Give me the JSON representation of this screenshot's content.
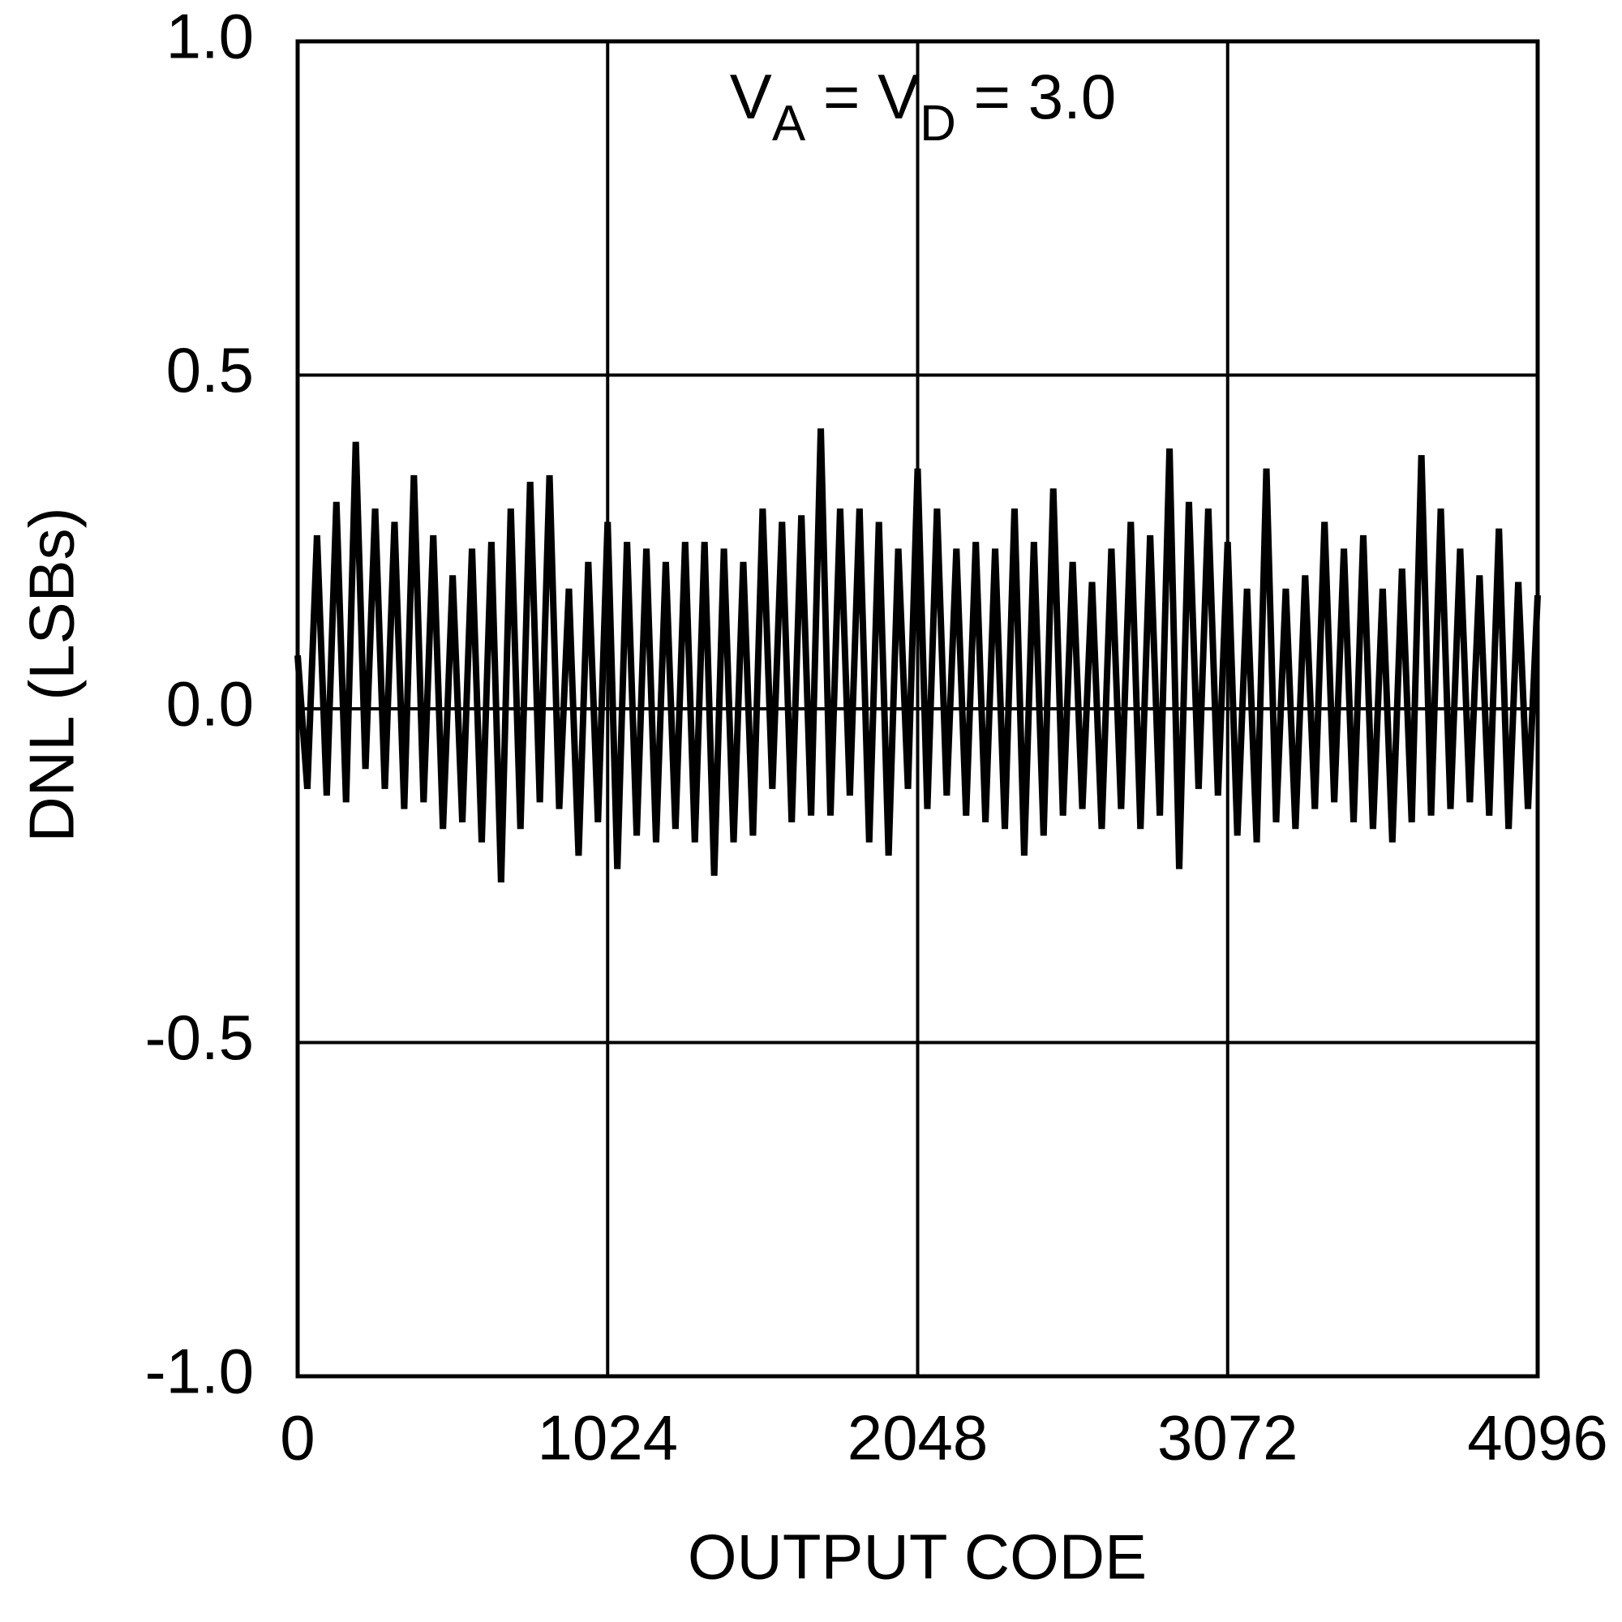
{
  "chart_data": {
    "type": "line",
    "xlabel": "OUTPUT CODE",
    "ylabel": "DNL (LSBs)",
    "annotation": [
      "V",
      "A",
      " = V",
      "D",
      " = 3.0"
    ],
    "color": "#000000",
    "grid": true,
    "xlim": [
      0,
      4096
    ],
    "xticks": [
      0,
      1024,
      2048,
      3072,
      4096
    ],
    "ylim": [
      -1,
      1
    ],
    "yticks": [
      {
        "value": 1,
        "label": "1.0"
      },
      {
        "value": 0.5,
        "label": "0.5"
      },
      {
        "value": 0,
        "label": "0.0"
      },
      {
        "value": -0.5,
        "label": "-0.5"
      },
      {
        "value": -1,
        "label": "-1.0"
      }
    ],
    "x": [
      0,
      32,
      64,
      96,
      128,
      160,
      192,
      224,
      256,
      288,
      320,
      352,
      384,
      416,
      448,
      480,
      512,
      544,
      576,
      608,
      640,
      672,
      704,
      736,
      768,
      800,
      832,
      864,
      896,
      928,
      960,
      992,
      1024,
      1056,
      1088,
      1120,
      1152,
      1184,
      1216,
      1248,
      1280,
      1312,
      1344,
      1376,
      1408,
      1440,
      1472,
      1504,
      1536,
      1568,
      1600,
      1632,
      1664,
      1696,
      1728,
      1760,
      1792,
      1824,
      1856,
      1888,
      1920,
      1952,
      1984,
      2016,
      2048,
      2080,
      2112,
      2144,
      2176,
      2208,
      2240,
      2272,
      2304,
      2336,
      2368,
      2400,
      2432,
      2464,
      2496,
      2528,
      2560,
      2592,
      2624,
      2656,
      2688,
      2720,
      2752,
      2784,
      2816,
      2848,
      2880,
      2912,
      2944,
      2976,
      3008,
      3040,
      3072,
      3104,
      3136,
      3168,
      3200,
      3232,
      3264,
      3296,
      3328,
      3360,
      3392,
      3424,
      3456,
      3488,
      3520,
      3552,
      3584,
      3616,
      3648,
      3680,
      3712,
      3744,
      3776,
      3808,
      3840,
      3872,
      3904,
      3936,
      3968,
      4000,
      4032,
      4064,
      4096
    ],
    "values": [
      0.08,
      -0.12,
      0.26,
      -0.13,
      0.31,
      -0.14,
      0.4,
      -0.09,
      0.3,
      -0.12,
      0.28,
      -0.15,
      0.35,
      -0.14,
      0.26,
      -0.18,
      0.2,
      -0.17,
      0.24,
      -0.2,
      0.25,
      -0.26,
      0.3,
      -0.18,
      0.34,
      -0.14,
      0.35,
      -0.15,
      0.18,
      -0.22,
      0.22,
      -0.17,
      0.28,
      -0.24,
      0.25,
      -0.19,
      0.24,
      -0.2,
      0.22,
      -0.18,
      0.25,
      -0.2,
      0.25,
      -0.25,
      0.24,
      -0.2,
      0.22,
      -0.19,
      0.3,
      -0.12,
      0.28,
      -0.17,
      0.29,
      -0.16,
      0.42,
      -0.16,
      0.3,
      -0.13,
      0.3,
      -0.2,
      0.28,
      -0.22,
      0.24,
      -0.12,
      0.36,
      -0.15,
      0.3,
      -0.13,
      0.24,
      -0.16,
      0.25,
      -0.17,
      0.24,
      -0.18,
      0.3,
      -0.22,
      0.25,
      -0.19,
      0.33,
      -0.16,
      0.22,
      -0.15,
      0.19,
      -0.18,
      0.24,
      -0.15,
      0.28,
      -0.18,
      0.26,
      -0.16,
      0.39,
      -0.24,
      0.31,
      -0.12,
      0.3,
      -0.13,
      0.25,
      -0.19,
      0.18,
      -0.2,
      0.36,
      -0.17,
      0.18,
      -0.18,
      0.2,
      -0.15,
      0.28,
      -0.14,
      0.24,
      -0.17,
      0.26,
      -0.18,
      0.18,
      -0.2,
      0.21,
      -0.17,
      0.38,
      -0.16,
      0.3,
      -0.15,
      0.24,
      -0.14,
      0.2,
      -0.16,
      0.27,
      -0.18,
      0.19,
      -0.15,
      0.17
    ]
  }
}
